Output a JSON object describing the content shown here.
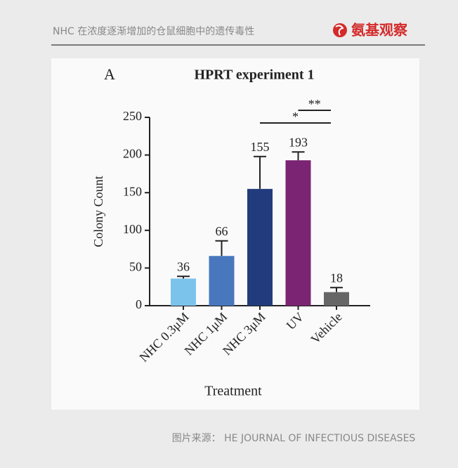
{
  "header": {
    "title": "NHC 在浓度逐渐增加的仓鼠细胞中的遗传毒性",
    "logo": "氨基观察"
  },
  "source": "图片来源：  HE JOURNAL OF INFECTIOUS DISEASES",
  "chart_data": {
    "type": "bar",
    "panel": "A",
    "title": "HPRT experiment 1",
    "categories": [
      "NHC 0.3μM",
      "NHC 1μM",
      "NHC 3μM",
      "UV",
      "Vehicle"
    ],
    "values": [
      36,
      66,
      155,
      193,
      18
    ],
    "errors": [
      3,
      20,
      43,
      11,
      6
    ],
    "colors": [
      "#7cc3ec",
      "#4877be",
      "#223b7c",
      "#7b2473",
      "#666666"
    ],
    "x_label": "Treatment",
    "y_label": "Colony Count",
    "ylim": [
      0,
      250
    ],
    "yticks": [
      0,
      50,
      100,
      150,
      200,
      250
    ],
    "grid": false,
    "significance": [
      {
        "label": "*",
        "categories": [
          "NHC 3μM",
          "Vehicle"
        ]
      },
      {
        "label": "**",
        "categories": [
          "UV",
          "Vehicle"
        ]
      }
    ]
  }
}
